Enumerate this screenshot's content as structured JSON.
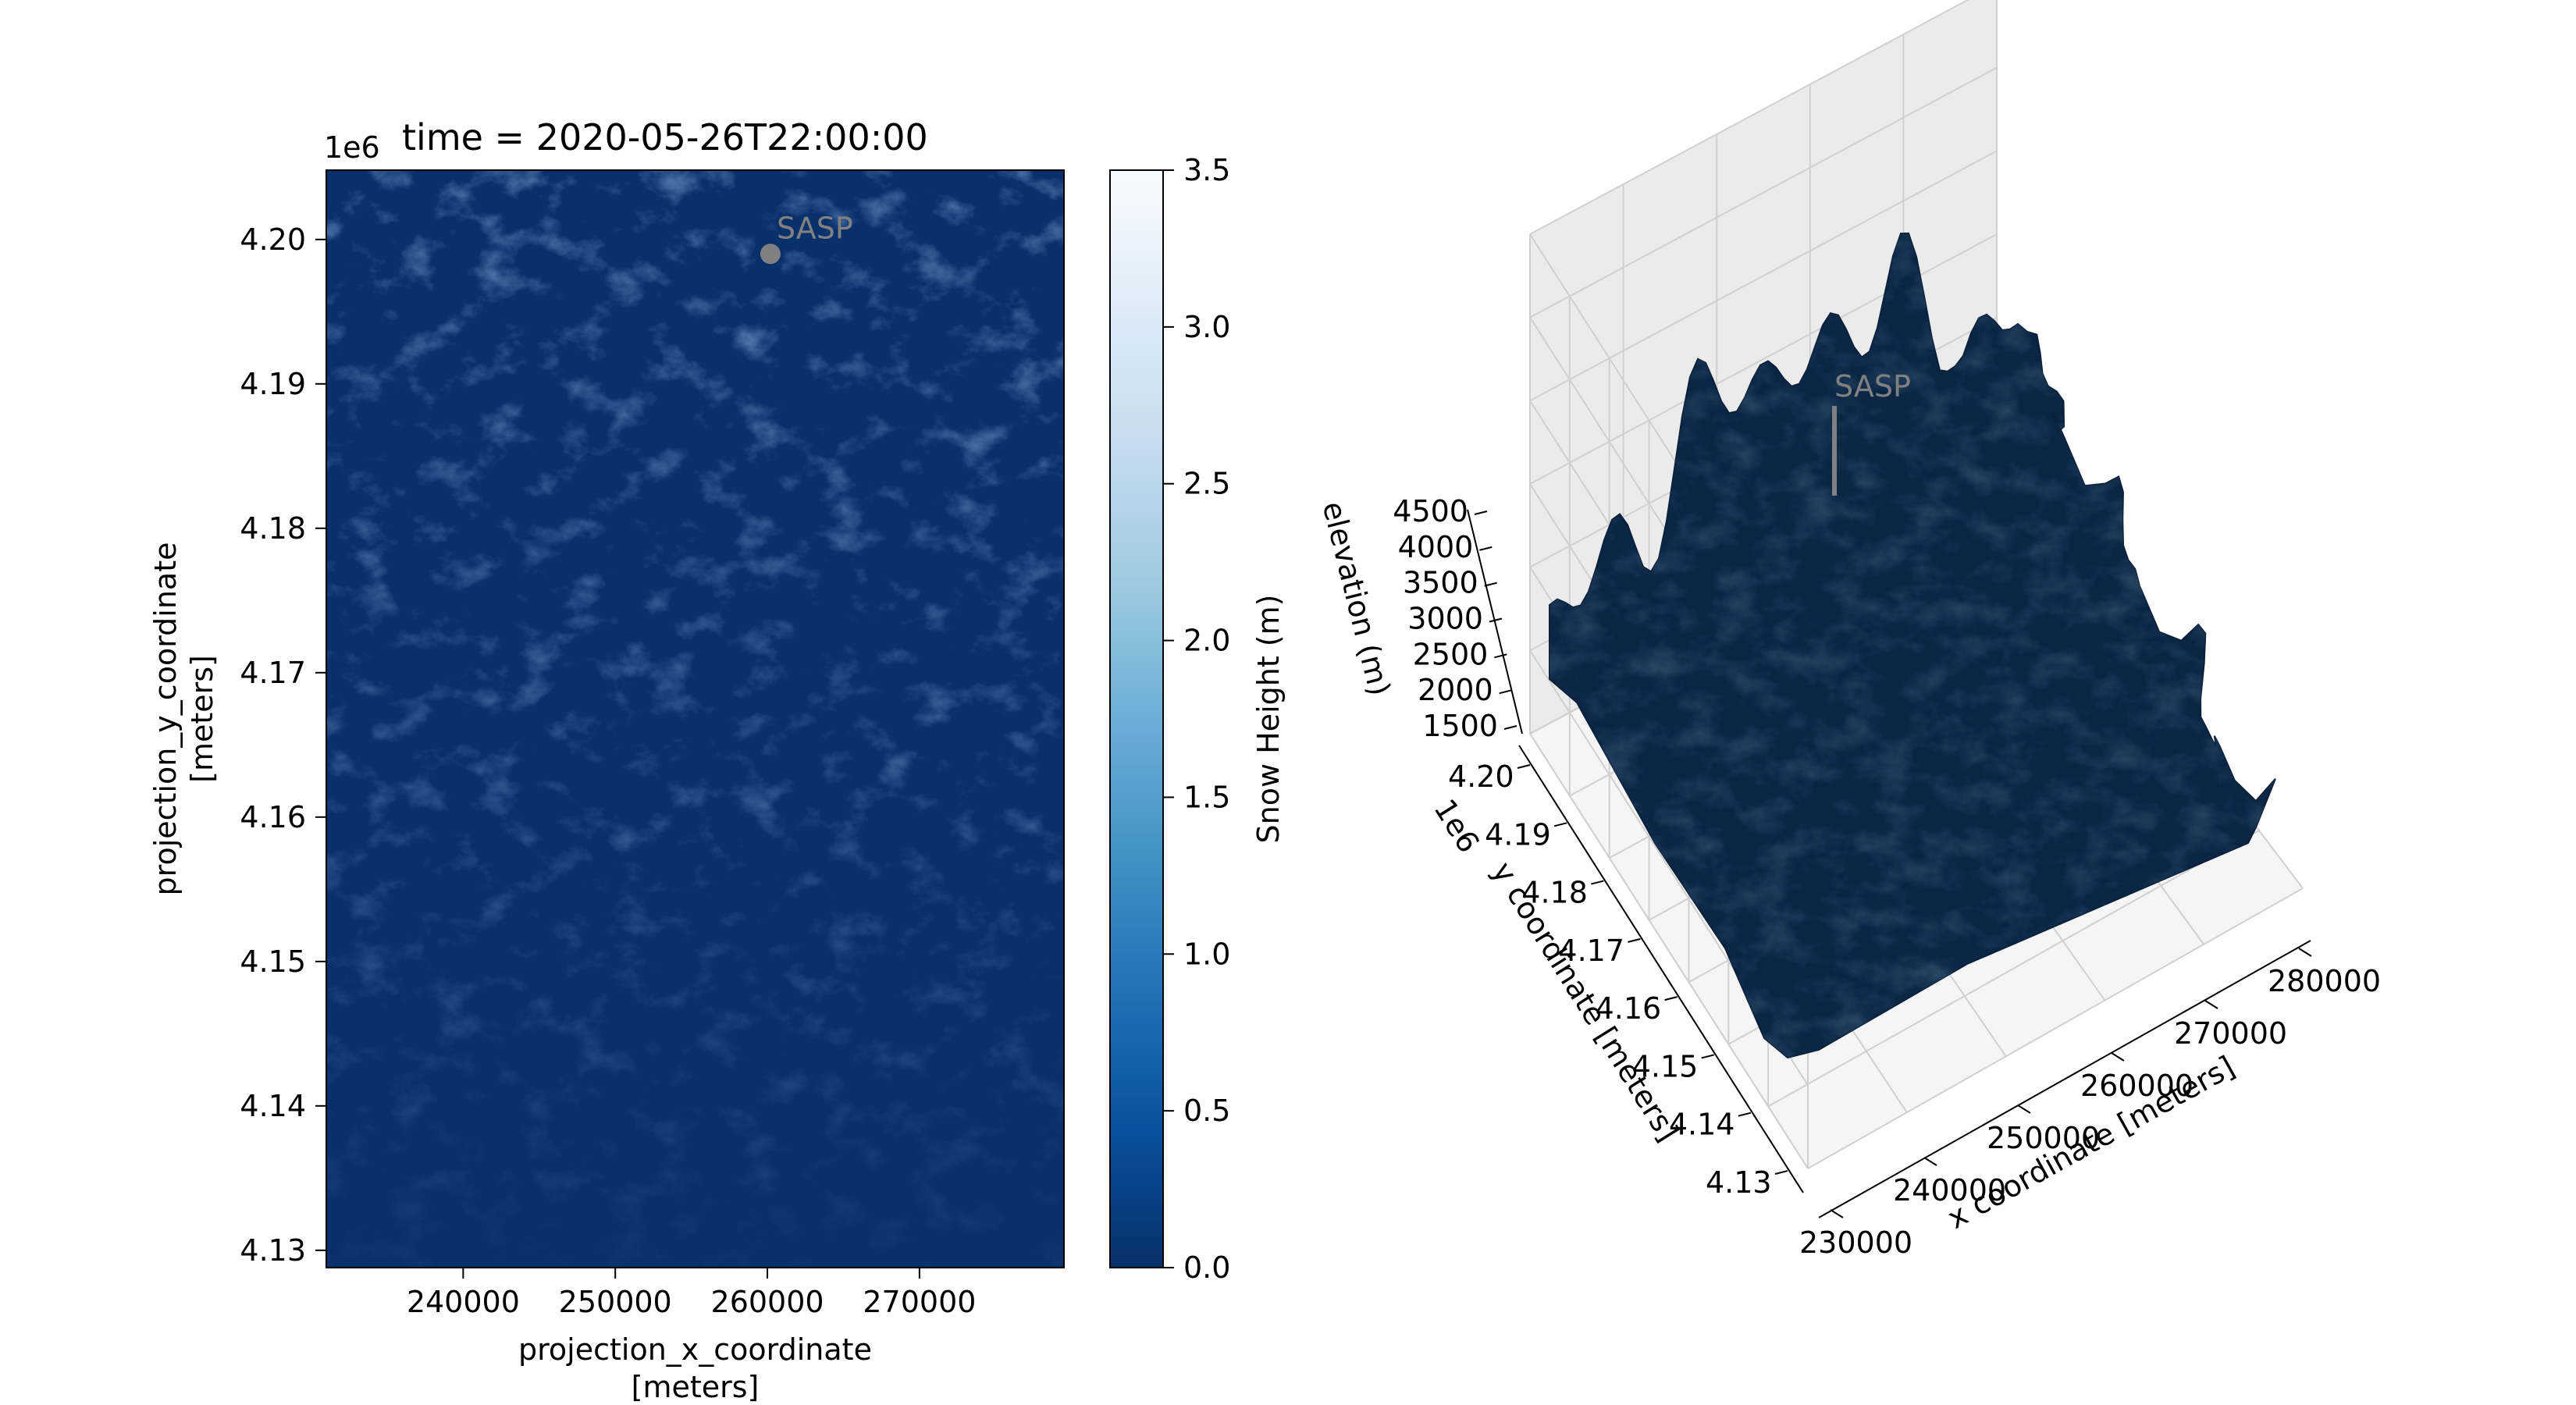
{
  "chart_data": [
    {
      "type": "heatmap",
      "title": "time = 2020-05-26T22:00:00",
      "xlabel_line1": "projection_x_coordinate",
      "xlabel_line2": "[meters]",
      "ylabel_line1": "projection_y_coordinate",
      "ylabel_line2": "[meters]",
      "y_offset_label": "1e6",
      "xlim": [
        231000,
        279500
      ],
      "ylim": [
        4.1288,
        4.2048
      ],
      "x_ticks": [
        240000,
        250000,
        260000,
        270000
      ],
      "x_tick_labels": [
        "240000",
        "250000",
        "260000",
        "270000"
      ],
      "y_ticks": [
        4.13,
        4.14,
        4.15,
        4.16,
        4.17,
        4.18,
        4.19,
        4.2
      ],
      "y_tick_labels": [
        "4.13",
        "4.14",
        "4.15",
        "4.16",
        "4.17",
        "4.18",
        "4.19",
        "4.20"
      ],
      "colorbar": {
        "label": "Snow Height (m)",
        "range": [
          0.0,
          3.5
        ],
        "ticks": [
          0.0,
          0.5,
          1.0,
          1.5,
          2.0,
          2.5,
          3.0,
          3.5
        ],
        "tick_labels": [
          "0.0",
          "0.5",
          "1.0",
          "1.5",
          "2.0",
          "2.5",
          "3.0",
          "3.5"
        ],
        "colormap": [
          "#08306b",
          "#08519c",
          "#2171b5",
          "#4292c6",
          "#6baed6",
          "#9ecae1",
          "#c6dbef",
          "#deebf7",
          "#f7fbff"
        ]
      },
      "annotations": [
        {
          "label": "SASP",
          "x": 260200,
          "y": 4.199,
          "color": "#808080"
        }
      ]
    },
    {
      "type": "surface3d",
      "xlabel": "x coordinate [meters]",
      "ylabel": "y coordinate [meters]",
      "zlabel": "elevation (m)",
      "y_offset_label": "1e6",
      "x_tick_labels": [
        "230000",
        "240000",
        "250000",
        "260000",
        "270000",
        "280000"
      ],
      "y_tick_labels": [
        "4.13",
        "4.14",
        "4.15",
        "4.16",
        "4.17",
        "4.18",
        "4.19",
        "4.20"
      ],
      "z_tick_labels": [
        "1500",
        "2000",
        "2500",
        "3000",
        "3500",
        "4000",
        "4500"
      ],
      "surface_color": "#0b2545",
      "annotations": [
        {
          "label": "SASP",
          "color": "#808080"
        }
      ]
    }
  ]
}
